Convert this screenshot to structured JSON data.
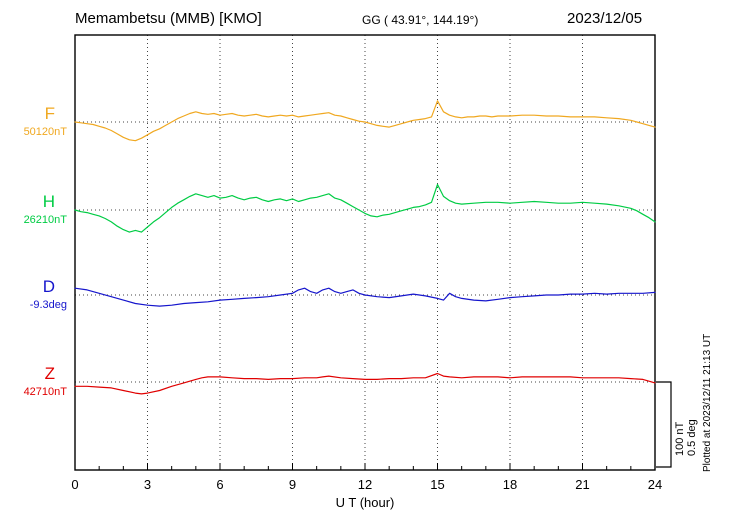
{
  "header": {
    "station": "Memambetsu (MMB)  [KMO]",
    "gg": "GG ( 43.91°, 144.19°)",
    "date": "2023/12/05"
  },
  "scale_bar": {
    "line1": "100 nT",
    "line2": "0.5 deg"
  },
  "plotted_at": "Plotted at 2023/12/11 21:13 UT",
  "chart_data": {
    "type": "line",
    "title": "Memambetsu (MMB) [KMO] magnetogram 2023/12/05",
    "xlabel": "U T (hour)",
    "x_range": [
      0,
      24
    ],
    "x_ticks": [
      0,
      3,
      6,
      9,
      12,
      15,
      18,
      21,
      24
    ],
    "grid": "dotted vertical at 3-hour intervals, dotted horizontal at each trace baseline",
    "legend_position": "left of each trace",
    "scale": {
      "nT_per_div": 100,
      "deg_per_div": 0.5
    },
    "note": "points are [UT hour, offset from baseline] in each series unit",
    "series": [
      {
        "name": "F",
        "unit": "nT",
        "color": "#f0a820",
        "baseline_label": "50120nT",
        "baseline_value": 50120,
        "points": [
          [
            0,
            0
          ],
          [
            0.25,
            -1
          ],
          [
            0.5,
            -2
          ],
          [
            0.75,
            -3
          ],
          [
            1,
            -5
          ],
          [
            1.25,
            -7
          ],
          [
            1.5,
            -10
          ],
          [
            1.75,
            -14
          ],
          [
            2,
            -18
          ],
          [
            2.25,
            -21
          ],
          [
            2.5,
            -22
          ],
          [
            2.75,
            -19
          ],
          [
            3,
            -15
          ],
          [
            3.25,
            -11
          ],
          [
            3.5,
            -8
          ],
          [
            3.75,
            -4
          ],
          [
            4,
            0
          ],
          [
            4.25,
            4
          ],
          [
            4.5,
            7
          ],
          [
            4.75,
            10
          ],
          [
            5,
            12
          ],
          [
            5.25,
            10
          ],
          [
            5.5,
            9
          ],
          [
            5.75,
            10
          ],
          [
            6,
            8
          ],
          [
            6.25,
            9
          ],
          [
            6.5,
            10
          ],
          [
            6.75,
            8
          ],
          [
            7,
            7
          ],
          [
            7.25,
            8
          ],
          [
            7.5,
            9
          ],
          [
            7.75,
            7
          ],
          [
            8,
            6
          ],
          [
            8.25,
            7
          ],
          [
            8.5,
            8
          ],
          [
            8.75,
            7
          ],
          [
            9,
            8
          ],
          [
            9.25,
            6
          ],
          [
            9.5,
            7
          ],
          [
            9.75,
            8
          ],
          [
            10,
            9
          ],
          [
            10.25,
            10
          ],
          [
            10.5,
            11
          ],
          [
            10.75,
            8
          ],
          [
            11,
            7
          ],
          [
            11.25,
            5
          ],
          [
            11.5,
            3
          ],
          [
            11.75,
            1
          ],
          [
            12,
            0
          ],
          [
            12.25,
            -2
          ],
          [
            12.5,
            -4
          ],
          [
            12.75,
            -5
          ],
          [
            13,
            -6
          ],
          [
            13.25,
            -4
          ],
          [
            13.5,
            -2
          ],
          [
            13.75,
            0
          ],
          [
            14,
            2
          ],
          [
            14.25,
            3
          ],
          [
            14.5,
            4
          ],
          [
            14.75,
            6
          ],
          [
            15,
            25
          ],
          [
            15.25,
            12
          ],
          [
            15.5,
            8
          ],
          [
            15.75,
            6
          ],
          [
            16,
            5
          ],
          [
            16.25,
            6
          ],
          [
            16.5,
            6
          ],
          [
            16.75,
            7
          ],
          [
            17,
            7
          ],
          [
            17.25,
            6
          ],
          [
            17.5,
            7
          ],
          [
            17.75,
            7
          ],
          [
            18,
            7
          ],
          [
            18.5,
            8
          ],
          [
            19,
            8
          ],
          [
            19.5,
            7
          ],
          [
            20,
            7
          ],
          [
            20.5,
            6
          ],
          [
            21,
            6
          ],
          [
            21.5,
            6
          ],
          [
            22,
            5
          ],
          [
            22.5,
            4
          ],
          [
            23,
            2
          ],
          [
            23.25,
            0
          ],
          [
            23.5,
            -2
          ],
          [
            23.75,
            -4
          ],
          [
            24,
            -6
          ]
        ]
      },
      {
        "name": "H",
        "unit": "nT",
        "color": "#00cc44",
        "baseline_label": "26210nT",
        "baseline_value": 26210,
        "points": [
          [
            0,
            0
          ],
          [
            0.25,
            -2
          ],
          [
            0.5,
            -3
          ],
          [
            0.75,
            -5
          ],
          [
            1,
            -7
          ],
          [
            1.25,
            -10
          ],
          [
            1.5,
            -14
          ],
          [
            1.75,
            -19
          ],
          [
            2,
            -23
          ],
          [
            2.25,
            -26
          ],
          [
            2.5,
            -24
          ],
          [
            2.75,
            -26
          ],
          [
            3,
            -20
          ],
          [
            3.25,
            -14
          ],
          [
            3.5,
            -9
          ],
          [
            3.75,
            -3
          ],
          [
            4,
            3
          ],
          [
            4.25,
            8
          ],
          [
            4.5,
            12
          ],
          [
            4.75,
            16
          ],
          [
            5,
            19
          ],
          [
            5.25,
            17
          ],
          [
            5.5,
            15
          ],
          [
            5.75,
            17
          ],
          [
            6,
            14
          ],
          [
            6.25,
            15
          ],
          [
            6.5,
            17
          ],
          [
            6.75,
            14
          ],
          [
            7,
            12
          ],
          [
            7.25,
            14
          ],
          [
            7.5,
            15
          ],
          [
            7.75,
            12
          ],
          [
            8,
            10
          ],
          [
            8.25,
            12
          ],
          [
            8.5,
            13
          ],
          [
            8.75,
            11
          ],
          [
            9,
            13
          ],
          [
            9.25,
            10
          ],
          [
            9.5,
            12
          ],
          [
            9.75,
            14
          ],
          [
            10,
            15
          ],
          [
            10.25,
            17
          ],
          [
            10.5,
            19
          ],
          [
            10.75,
            14
          ],
          [
            11,
            12
          ],
          [
            11.25,
            8
          ],
          [
            11.5,
            4
          ],
          [
            11.75,
            0
          ],
          [
            12,
            -4
          ],
          [
            12.25,
            -7
          ],
          [
            12.5,
            -8
          ],
          [
            12.75,
            -6
          ],
          [
            13,
            -5
          ],
          [
            13.25,
            -3
          ],
          [
            13.5,
            -1
          ],
          [
            13.75,
            1
          ],
          [
            14,
            3
          ],
          [
            14.25,
            4
          ],
          [
            14.5,
            6
          ],
          [
            14.75,
            9
          ],
          [
            15,
            30
          ],
          [
            15.25,
            16
          ],
          [
            15.5,
            11
          ],
          [
            15.75,
            8
          ],
          [
            16,
            7
          ],
          [
            16.5,
            8
          ],
          [
            17,
            9
          ],
          [
            17.5,
            9
          ],
          [
            18,
            8
          ],
          [
            18.5,
            9
          ],
          [
            19,
            10
          ],
          [
            19.5,
            9
          ],
          [
            20,
            8
          ],
          [
            20.5,
            8
          ],
          [
            21,
            9
          ],
          [
            21.5,
            8
          ],
          [
            22,
            7
          ],
          [
            22.5,
            5
          ],
          [
            23,
            2
          ],
          [
            23.25,
            -1
          ],
          [
            23.5,
            -5
          ],
          [
            23.75,
            -9
          ],
          [
            24,
            -14
          ]
        ]
      },
      {
        "name": "D",
        "unit": "deg",
        "color": "#1515cc",
        "baseline_label": "-9.3deg",
        "baseline_value": -9.3,
        "points": [
          [
            0,
            0.04
          ],
          [
            0.5,
            0.03
          ],
          [
            1,
            0.01
          ],
          [
            1.5,
            -0.01
          ],
          [
            2,
            -0.03
          ],
          [
            2.5,
            -0.05
          ],
          [
            3,
            -0.06
          ],
          [
            3.5,
            -0.065
          ],
          [
            4,
            -0.06
          ],
          [
            4.5,
            -0.05
          ],
          [
            5,
            -0.045
          ],
          [
            5.5,
            -0.04
          ],
          [
            6,
            -0.03
          ],
          [
            6.5,
            -0.025
          ],
          [
            7,
            -0.02
          ],
          [
            7.5,
            -0.015
          ],
          [
            8,
            -0.01
          ],
          [
            8.5,
            0
          ],
          [
            9,
            0.01
          ],
          [
            9.25,
            0.03
          ],
          [
            9.5,
            0.04
          ],
          [
            9.75,
            0.02
          ],
          [
            10,
            0.01
          ],
          [
            10.25,
            0.03
          ],
          [
            10.5,
            0.04
          ],
          [
            10.75,
            0.02
          ],
          [
            11,
            0.01
          ],
          [
            11.25,
            0.02
          ],
          [
            11.5,
            0.03
          ],
          [
            11.75,
            0.01
          ],
          [
            12,
            0
          ],
          [
            12.5,
            -0.01
          ],
          [
            13,
            -0.015
          ],
          [
            13.5,
            -0.005
          ],
          [
            14,
            0.005
          ],
          [
            14.5,
            -0.005
          ],
          [
            15,
            -0.02
          ],
          [
            15.25,
            -0.03
          ],
          [
            15.5,
            0.01
          ],
          [
            15.75,
            -0.01
          ],
          [
            16,
            -0.02
          ],
          [
            16.5,
            -0.03
          ],
          [
            17,
            -0.035
          ],
          [
            17.5,
            -0.025
          ],
          [
            18,
            -0.015
          ],
          [
            18.5,
            -0.01
          ],
          [
            19,
            -0.005
          ],
          [
            19.5,
            0
          ],
          [
            20,
            0
          ],
          [
            20.5,
            0.005
          ],
          [
            21,
            0.005
          ],
          [
            21.5,
            0.01
          ],
          [
            22,
            0.005
          ],
          [
            22.5,
            0.01
          ],
          [
            23,
            0.01
          ],
          [
            23.5,
            0.01
          ],
          [
            24,
            0.015
          ]
        ]
      },
      {
        "name": "Z",
        "unit": "nT",
        "color": "#e00000",
        "baseline_label": "42710nT",
        "baseline_value": 42710,
        "points": [
          [
            0,
            -5
          ],
          [
            0.5,
            -5
          ],
          [
            1,
            -6
          ],
          [
            1.5,
            -7
          ],
          [
            2,
            -10
          ],
          [
            2.5,
            -13
          ],
          [
            2.75,
            -14
          ],
          [
            3,
            -13
          ],
          [
            3.5,
            -10
          ],
          [
            4,
            -5
          ],
          [
            4.5,
            -1
          ],
          [
            5,
            3
          ],
          [
            5.25,
            5
          ],
          [
            5.5,
            6
          ],
          [
            6,
            6
          ],
          [
            6.5,
            5
          ],
          [
            7,
            4
          ],
          [
            7.5,
            4
          ],
          [
            8,
            3
          ],
          [
            8.5,
            4
          ],
          [
            9,
            4
          ],
          [
            9.5,
            5
          ],
          [
            10,
            5
          ],
          [
            10.25,
            6
          ],
          [
            10.5,
            7
          ],
          [
            11,
            5
          ],
          [
            11.5,
            4
          ],
          [
            12,
            3
          ],
          [
            12.5,
            3
          ],
          [
            13,
            4
          ],
          [
            13.5,
            4
          ],
          [
            14,
            5
          ],
          [
            14.5,
            5
          ],
          [
            15,
            10
          ],
          [
            15.25,
            7
          ],
          [
            15.5,
            6
          ],
          [
            16,
            5
          ],
          [
            16.5,
            6
          ],
          [
            17,
            6
          ],
          [
            17.5,
            6
          ],
          [
            18,
            5
          ],
          [
            18.5,
            6
          ],
          [
            19,
            6
          ],
          [
            19.5,
            6
          ],
          [
            20,
            6
          ],
          [
            20.5,
            6
          ],
          [
            21,
            5
          ],
          [
            21.5,
            5
          ],
          [
            22,
            5
          ],
          [
            22.5,
            5
          ],
          [
            23,
            4
          ],
          [
            23.5,
            3
          ],
          [
            24,
            -1
          ]
        ]
      }
    ]
  }
}
